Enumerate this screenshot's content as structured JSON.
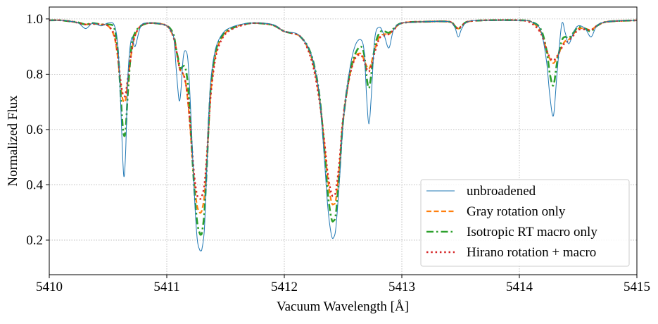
{
  "chart_data": {
    "type": "line",
    "xlabel": "Vacuum Wavelength [Å]",
    "ylabel": "Normalized Flux",
    "xlim": [
      5410,
      5415
    ],
    "ylim": [
      0.075,
      1.043
    ],
    "xticks": [
      "5410",
      "5411",
      "5412",
      "5413",
      "5414",
      "5415"
    ],
    "yticks": [
      "0.2",
      "0.4",
      "0.6",
      "0.8",
      "1.0"
    ],
    "grid": true,
    "legend_position": "lower-right",
    "x": [
      5410.0,
      5410.1,
      5410.2,
      5410.25,
      5410.31,
      5410.37,
      5410.44,
      5410.5,
      5410.55,
      5410.58,
      5410.6,
      5410.62,
      5410.635,
      5410.65,
      5410.67,
      5410.7,
      5410.73,
      5410.78,
      5410.85,
      5410.95,
      5411.0,
      5411.03,
      5411.06,
      5411.08,
      5411.1,
      5411.11,
      5411.12,
      5411.14,
      5411.16,
      5411.18,
      5411.2,
      5411.22,
      5411.24,
      5411.26,
      5411.28,
      5411.29,
      5411.3,
      5411.32,
      5411.34,
      5411.36,
      5411.38,
      5411.42,
      5411.48,
      5411.55,
      5411.65,
      5411.75,
      5411.9,
      5412.0,
      5412.1,
      5412.15,
      5412.2,
      5412.25,
      5412.3,
      5412.34,
      5412.37,
      5412.4,
      5412.42,
      5412.44,
      5412.47,
      5412.5,
      5412.55,
      5412.6,
      5412.65,
      5412.68,
      5412.7,
      5412.72,
      5412.74,
      5412.77,
      5412.81,
      5412.85,
      5412.89,
      5412.93,
      5413.0,
      5413.2,
      5413.4,
      5413.45,
      5413.48,
      5413.51,
      5413.56,
      5413.7,
      5414.0,
      5414.1,
      5414.18,
      5414.23,
      5414.26,
      5414.29,
      5414.32,
      5414.36,
      5414.39,
      5414.42,
      5414.46,
      5414.5,
      5414.56,
      5414.61,
      5414.66,
      5414.75,
      5415.0
    ],
    "series": [
      {
        "name": "unbroadened",
        "color": "#1f77b4",
        "style": "solid",
        "values": [
          0.995,
          0.995,
          0.99,
          0.985,
          0.965,
          0.985,
          0.975,
          0.985,
          0.98,
          0.92,
          0.78,
          0.55,
          0.43,
          0.52,
          0.8,
          0.93,
          0.9,
          0.975,
          0.985,
          0.982,
          0.975,
          0.96,
          0.93,
          0.82,
          0.72,
          0.705,
          0.74,
          0.86,
          0.885,
          0.85,
          0.7,
          0.5,
          0.32,
          0.2,
          0.165,
          0.162,
          0.17,
          0.24,
          0.45,
          0.68,
          0.8,
          0.9,
          0.95,
          0.97,
          0.982,
          0.985,
          0.98,
          0.955,
          0.948,
          0.93,
          0.9,
          0.84,
          0.72,
          0.5,
          0.32,
          0.22,
          0.21,
          0.25,
          0.42,
          0.62,
          0.8,
          0.9,
          0.925,
          0.88,
          0.72,
          0.62,
          0.72,
          0.93,
          0.97,
          0.94,
          0.895,
          0.96,
          0.985,
          0.99,
          0.99,
          0.97,
          0.935,
          0.965,
          0.99,
          0.995,
          0.995,
          0.99,
          0.96,
          0.85,
          0.72,
          0.65,
          0.8,
          0.98,
          0.95,
          0.91,
          0.95,
          0.975,
          0.965,
          0.935,
          0.975,
          0.99,
          0.995
        ]
      },
      {
        "name": "Gray rotation only",
        "color": "#ff7f0e",
        "style": "dashed",
        "values": [
          0.995,
          0.995,
          0.99,
          0.985,
          0.98,
          0.982,
          0.98,
          0.975,
          0.94,
          0.87,
          0.79,
          0.72,
          0.7,
          0.71,
          0.78,
          0.88,
          0.94,
          0.975,
          0.985,
          0.982,
          0.975,
          0.96,
          0.93,
          0.89,
          0.84,
          0.82,
          0.81,
          0.8,
          0.77,
          0.7,
          0.6,
          0.48,
          0.38,
          0.32,
          0.3,
          0.3,
          0.31,
          0.36,
          0.48,
          0.64,
          0.76,
          0.88,
          0.94,
          0.965,
          0.98,
          0.985,
          0.978,
          0.955,
          0.945,
          0.93,
          0.895,
          0.83,
          0.71,
          0.55,
          0.42,
          0.34,
          0.33,
          0.35,
          0.47,
          0.63,
          0.78,
          0.86,
          0.875,
          0.85,
          0.83,
          0.82,
          0.84,
          0.89,
          0.935,
          0.945,
          0.945,
          0.96,
          0.985,
          0.99,
          0.99,
          0.975,
          0.965,
          0.975,
          0.99,
          0.995,
          0.995,
          0.99,
          0.955,
          0.89,
          0.855,
          0.84,
          0.86,
          0.9,
          0.92,
          0.925,
          0.945,
          0.965,
          0.965,
          0.96,
          0.975,
          0.99,
          0.995
        ]
      },
      {
        "name": "Isotropic RT macro only",
        "color": "#2ca02c",
        "style": "dashdot",
        "values": [
          0.995,
          0.995,
          0.99,
          0.987,
          0.98,
          0.985,
          0.98,
          0.98,
          0.97,
          0.9,
          0.78,
          0.64,
          0.58,
          0.6,
          0.74,
          0.9,
          0.95,
          0.975,
          0.985,
          0.982,
          0.975,
          0.965,
          0.94,
          0.89,
          0.85,
          0.83,
          0.82,
          0.83,
          0.82,
          0.76,
          0.64,
          0.48,
          0.35,
          0.26,
          0.225,
          0.22,
          0.23,
          0.3,
          0.46,
          0.65,
          0.78,
          0.89,
          0.945,
          0.965,
          0.98,
          0.985,
          0.978,
          0.955,
          0.945,
          0.93,
          0.9,
          0.84,
          0.72,
          0.53,
          0.37,
          0.28,
          0.27,
          0.3,
          0.45,
          0.63,
          0.79,
          0.87,
          0.9,
          0.87,
          0.79,
          0.75,
          0.8,
          0.9,
          0.95,
          0.955,
          0.95,
          0.965,
          0.985,
          0.99,
          0.99,
          0.975,
          0.962,
          0.975,
          0.99,
          0.995,
          0.995,
          0.99,
          0.965,
          0.89,
          0.8,
          0.76,
          0.84,
          0.92,
          0.935,
          0.93,
          0.95,
          0.97,
          0.965,
          0.955,
          0.975,
          0.99,
          0.995
        ]
      },
      {
        "name": "Hirano rotation + macro",
        "color": "#d62728",
        "style": "dotted",
        "values": [
          0.995,
          0.995,
          0.99,
          0.985,
          0.98,
          0.982,
          0.98,
          0.975,
          0.945,
          0.88,
          0.8,
          0.74,
          0.72,
          0.73,
          0.79,
          0.88,
          0.94,
          0.975,
          0.985,
          0.982,
          0.975,
          0.96,
          0.93,
          0.89,
          0.84,
          0.82,
          0.81,
          0.8,
          0.77,
          0.71,
          0.61,
          0.5,
          0.41,
          0.36,
          0.35,
          0.35,
          0.36,
          0.4,
          0.5,
          0.64,
          0.75,
          0.87,
          0.935,
          0.962,
          0.978,
          0.985,
          0.978,
          0.955,
          0.945,
          0.93,
          0.89,
          0.82,
          0.7,
          0.56,
          0.44,
          0.37,
          0.36,
          0.38,
          0.49,
          0.64,
          0.78,
          0.855,
          0.87,
          0.845,
          0.82,
          0.81,
          0.83,
          0.88,
          0.93,
          0.94,
          0.945,
          0.96,
          0.985,
          0.99,
          0.99,
          0.975,
          0.965,
          0.975,
          0.99,
          0.995,
          0.995,
          0.985,
          0.95,
          0.89,
          0.86,
          0.85,
          0.865,
          0.895,
          0.915,
          0.92,
          0.94,
          0.96,
          0.962,
          0.96,
          0.975,
          0.99,
          0.995
        ]
      }
    ]
  }
}
